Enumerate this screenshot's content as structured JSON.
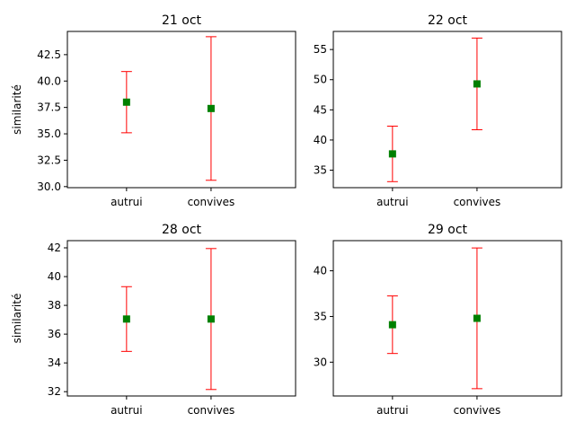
{
  "chart_data": [
    {
      "type": "errorbar",
      "title": "21 oct",
      "ylabel": "similarité",
      "categories": [
        "autrui",
        "convives"
      ],
      "values": [
        38.0,
        37.4
      ],
      "errors": [
        2.9,
        6.8
      ],
      "ylim": [
        29.9,
        44.7
      ],
      "yticks": [
        30.0,
        32.5,
        35.0,
        37.5,
        40.0,
        42.5
      ],
      "ytick_labels": [
        "30.0",
        "32.5",
        "35.0",
        "37.5",
        "40.0",
        "42.5"
      ]
    },
    {
      "type": "errorbar",
      "title": "22 oct",
      "ylabel": "",
      "categories": [
        "autrui",
        "convives"
      ],
      "values": [
        37.7,
        49.3
      ],
      "errors": [
        4.6,
        7.6
      ],
      "ylim": [
        32.1,
        58.0
      ],
      "yticks": [
        35,
        40,
        45,
        50,
        55
      ],
      "ytick_labels": [
        "35",
        "40",
        "45",
        "50",
        "55"
      ]
    },
    {
      "type": "errorbar",
      "title": "28 oct",
      "ylabel": "similarité",
      "categories": [
        "autrui",
        "convives"
      ],
      "values": [
        37.05,
        37.05
      ],
      "errors": [
        2.25,
        4.9
      ],
      "ylim": [
        31.7,
        42.5
      ],
      "yticks": [
        32,
        34,
        36,
        38,
        40,
        42
      ],
      "ytick_labels": [
        "32",
        "34",
        "36",
        "38",
        "40",
        "42"
      ]
    },
    {
      "type": "errorbar",
      "title": "29 oct",
      "ylabel": "",
      "categories": [
        "autrui",
        "convives"
      ],
      "values": [
        34.1,
        34.8
      ],
      "errors": [
        3.15,
        7.7
      ],
      "ylim": [
        26.3,
        43.3
      ],
      "yticks": [
        30,
        35,
        40
      ],
      "ytick_labels": [
        "30",
        "35",
        "40"
      ]
    }
  ],
  "colors": {
    "marker": "#008000",
    "errorbar": "#ff0000"
  }
}
